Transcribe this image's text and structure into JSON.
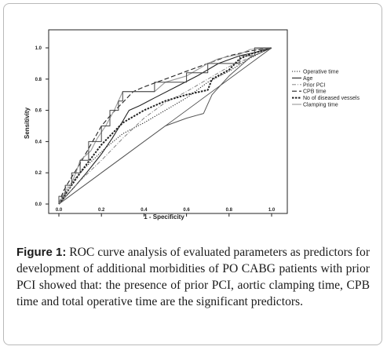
{
  "chart_data": {
    "type": "line",
    "xlabel": "1 - Specificity",
    "ylabel": "Sensitivity",
    "xlim": [
      0,
      1
    ],
    "ylim": [
      0,
      1
    ],
    "x_ticks": [
      "0.0",
      "0.2",
      "0.4",
      "0.6",
      "0.8",
      "1.0"
    ],
    "y_ticks": [
      "0.0",
      "0.2",
      "0.4",
      "0.6",
      "0.8",
      "1.0"
    ],
    "legend_position": "right",
    "series": [
      {
        "name": "Operative time",
        "style": "dotted",
        "color": "#222222",
        "points": [
          [
            0,
            0
          ],
          [
            0.02,
            0.06
          ],
          [
            0.05,
            0.12
          ],
          [
            0.1,
            0.2
          ],
          [
            0.15,
            0.27
          ],
          [
            0.22,
            0.36
          ],
          [
            0.3,
            0.45
          ],
          [
            0.4,
            0.52
          ],
          [
            0.5,
            0.6
          ],
          [
            0.6,
            0.68
          ],
          [
            0.7,
            0.78
          ],
          [
            0.8,
            0.85
          ],
          [
            0.88,
            0.92
          ],
          [
            0.95,
            0.97
          ],
          [
            1,
            1
          ]
        ]
      },
      {
        "name": "Age",
        "style": "solid",
        "color": "#222222",
        "points": [
          [
            0,
            0
          ],
          [
            0.04,
            0.06
          ],
          [
            0.08,
            0.12
          ],
          [
            0.13,
            0.2
          ],
          [
            0.2,
            0.32
          ],
          [
            0.25,
            0.42
          ],
          [
            0.3,
            0.53
          ],
          [
            0.33,
            0.6
          ],
          [
            0.38,
            0.63
          ],
          [
            0.45,
            0.68
          ],
          [
            0.55,
            0.75
          ],
          [
            0.65,
            0.82
          ],
          [
            0.75,
            0.9
          ],
          [
            0.85,
            0.95
          ],
          [
            0.92,
            0.97
          ],
          [
            1,
            1
          ]
        ]
      },
      {
        "name": "Prior PCI",
        "style": "dashdot",
        "color": "#777777",
        "points": [
          [
            0,
            0
          ],
          [
            0.1,
            0.15
          ],
          [
            0.2,
            0.28
          ],
          [
            0.3,
            0.42
          ],
          [
            0.4,
            0.55
          ],
          [
            0.5,
            0.65
          ],
          [
            0.6,
            0.72
          ],
          [
            0.7,
            0.8
          ],
          [
            0.8,
            0.88
          ],
          [
            0.9,
            0.94
          ],
          [
            1,
            1
          ]
        ]
      },
      {
        "name": "CPB time",
        "style": "longdash",
        "color": "#222222",
        "points": [
          [
            0,
            0
          ],
          [
            0.02,
            0.08
          ],
          [
            0.05,
            0.15
          ],
          [
            0.1,
            0.26
          ],
          [
            0.15,
            0.38
          ],
          [
            0.2,
            0.5
          ],
          [
            0.25,
            0.58
          ],
          [
            0.3,
            0.65
          ],
          [
            0.35,
            0.72
          ],
          [
            0.4,
            0.75
          ],
          [
            0.5,
            0.8
          ],
          [
            0.6,
            0.85
          ],
          [
            0.7,
            0.9
          ],
          [
            0.8,
            0.95
          ],
          [
            0.9,
            0.98
          ],
          [
            1,
            1
          ]
        ]
      },
      {
        "name": "No of diseased vessels",
        "style": "boldshortdash",
        "color": "#222222",
        "points": [
          [
            0,
            0
          ],
          [
            0.05,
            0.1
          ],
          [
            0.1,
            0.2
          ],
          [
            0.2,
            0.38
          ],
          [
            0.3,
            0.52
          ],
          [
            0.4,
            0.6
          ],
          [
            0.5,
            0.66
          ],
          [
            0.6,
            0.7
          ],
          [
            0.7,
            0.73
          ],
          [
            0.72,
            0.8
          ],
          [
            0.8,
            0.86
          ],
          [
            0.85,
            0.93
          ],
          [
            0.9,
            0.96
          ],
          [
            1,
            1
          ]
        ]
      },
      {
        "name": "Clamping time",
        "style": "solid",
        "color": "#999999",
        "points": [
          [
            0,
            0
          ],
          [
            0.02,
            0.06
          ],
          [
            0.05,
            0.1
          ],
          [
            0.08,
            0.2
          ],
          [
            0.1,
            0.28
          ],
          [
            0.15,
            0.34
          ],
          [
            0.18,
            0.42
          ],
          [
            0.22,
            0.5
          ],
          [
            0.26,
            0.6
          ],
          [
            0.28,
            0.66
          ],
          [
            0.3,
            0.72
          ],
          [
            0.36,
            0.72
          ],
          [
            0.45,
            0.72
          ],
          [
            0.5,
            0.78
          ],
          [
            0.6,
            0.82
          ],
          [
            0.65,
            0.86
          ],
          [
            0.7,
            0.9
          ],
          [
            0.75,
            0.93
          ],
          [
            0.85,
            0.96
          ],
          [
            0.9,
            0.99
          ],
          [
            1,
            1
          ]
        ]
      },
      {
        "name": "",
        "style": "step",
        "color": "#444444",
        "points": [
          [
            0,
            0
          ],
          [
            0,
            0.05
          ],
          [
            0.03,
            0.05
          ],
          [
            0.03,
            0.12
          ],
          [
            0.06,
            0.12
          ],
          [
            0.06,
            0.2
          ],
          [
            0.1,
            0.2
          ],
          [
            0.1,
            0.28
          ],
          [
            0.14,
            0.28
          ],
          [
            0.14,
            0.4
          ],
          [
            0.2,
            0.4
          ],
          [
            0.2,
            0.5
          ],
          [
            0.24,
            0.5
          ],
          [
            0.24,
            0.6
          ],
          [
            0.28,
            0.6
          ],
          [
            0.28,
            0.66
          ],
          [
            0.3,
            0.66
          ],
          [
            0.3,
            0.72
          ],
          [
            0.45,
            0.72
          ],
          [
            0.45,
            0.78
          ],
          [
            0.6,
            0.78
          ],
          [
            0.6,
            0.84
          ],
          [
            0.7,
            0.84
          ],
          [
            0.7,
            0.9
          ],
          [
            0.85,
            0.9
          ],
          [
            0.85,
            0.95
          ],
          [
            0.92,
            0.95
          ],
          [
            0.92,
            1
          ],
          [
            1,
            1
          ]
        ]
      },
      {
        "name": "",
        "style": "step",
        "color": "#555555",
        "points": [
          [
            0,
            0
          ],
          [
            0.05,
            0.05
          ],
          [
            0.1,
            0.1
          ],
          [
            0.2,
            0.2
          ],
          [
            0.3,
            0.3
          ],
          [
            0.4,
            0.4
          ],
          [
            0.5,
            0.5
          ],
          [
            0.6,
            0.55
          ],
          [
            0.68,
            0.58
          ],
          [
            0.7,
            0.64
          ],
          [
            0.72,
            0.7
          ],
          [
            0.8,
            0.82
          ],
          [
            0.85,
            0.88
          ],
          [
            0.9,
            0.94
          ],
          [
            1,
            1
          ]
        ]
      }
    ]
  },
  "caption": {
    "label": "Figure 1:",
    "text": " ROC curve analysis of evaluated parameters as predictors for development of additional morbidities of PO CABG patients with prior PCI showed that: the presence of prior PCI, aortic clamping time, CPB time and total operative time are the significant predictors."
  }
}
